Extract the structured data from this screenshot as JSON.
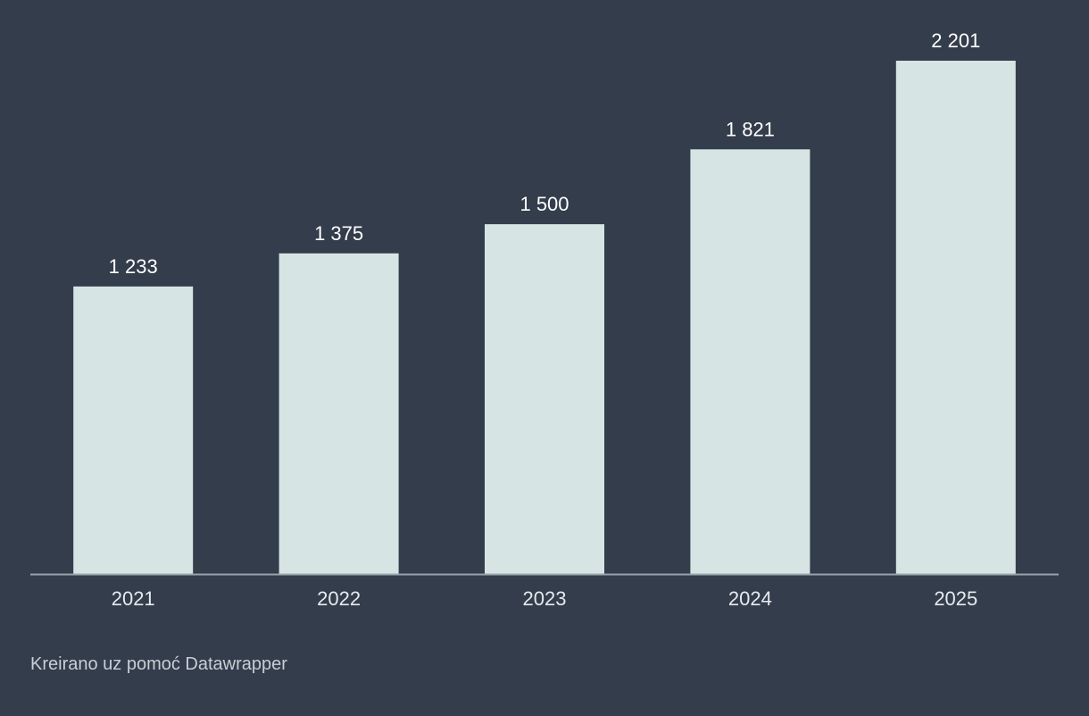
{
  "chart_data": {
    "type": "bar",
    "categories": [
      "2021",
      "2022",
      "2023",
      "2024",
      "2025"
    ],
    "values": [
      1233,
      1375,
      1500,
      1821,
      2201
    ],
    "value_labels": [
      "1 233",
      "1 375",
      "1 500",
      "1 821",
      "2 201"
    ],
    "title": "",
    "xlabel": "",
    "ylabel": "",
    "ylim": [
      0,
      2201
    ],
    "grid": false,
    "legend": "none",
    "colors": {
      "background": "#333d4c",
      "bar": "#d6e5e4",
      "axis": "#9aa1aa",
      "text": "#ffffff"
    }
  },
  "footer": {
    "credit": "Kreirano uz pomoć Datawrapper"
  }
}
